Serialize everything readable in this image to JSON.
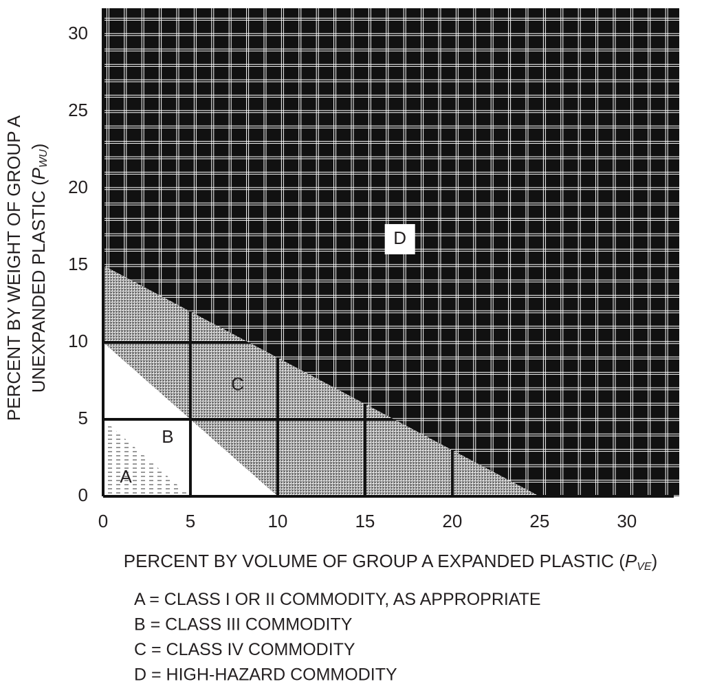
{
  "chart_data": {
    "type": "region",
    "y_label": {
      "line1": "PERCENT BY WEIGHT OF GROUP A",
      "line2": "UNEXPANDED PLASTIC (",
      "symbol": "P",
      "subscript": "WU",
      "close": ")"
    },
    "x_label": {
      "text": "PERCENT BY VOLUME OF GROUP A EXPANDED PLASTIC (",
      "symbol": "P",
      "subscript": "VE",
      "close": ")"
    },
    "xlim": [
      0,
      33
    ],
    "ylim": [
      0,
      31.7
    ],
    "xticks": [
      0,
      5,
      10,
      15,
      20,
      25,
      30
    ],
    "yticks": [
      0,
      5,
      10,
      15,
      20,
      25,
      30
    ],
    "grid": true,
    "regions": [
      {
        "label": "A",
        "description": "A = CLASS I OR II COMMODITY, AS APPROPRIATE",
        "x": [
          0,
          0,
          5
        ],
        "y": [
          0,
          5,
          0
        ]
      },
      {
        "label": "B",
        "description": "B = CLASS III COMMODITY",
        "x": [
          0,
          0,
          10,
          5
        ],
        "y": [
          5,
          10,
          0,
          0
        ]
      },
      {
        "label": "C",
        "description": "C = CLASS IV COMMODITY",
        "x": [
          0,
          0,
          25,
          10
        ],
        "y": [
          10,
          15,
          0,
          0
        ]
      },
      {
        "label": "D",
        "description": "D = HIGH-HAZARD COMMODITY",
        "x": [
          0,
          25
        ],
        "y": [
          15,
          0
        ]
      }
    ]
  }
}
